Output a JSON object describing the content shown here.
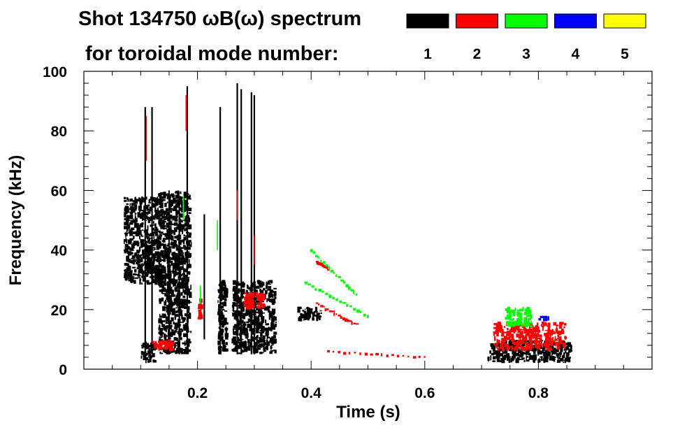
{
  "chart_data": {
    "type": "heatmap",
    "title_line1": "Shot 134750 ωB(ω) spectrum",
    "title_line2": "for toroidal mode number:",
    "xlabel": "Time (s)",
    "ylabel": "Frequency (kHz)",
    "xlim": [
      0.0,
      1.0
    ],
    "ylim": [
      0,
      100
    ],
    "x_ticks": [
      0.2,
      0.4,
      0.6,
      0.8
    ],
    "x_tick_labels": [
      "0.2",
      "0.4",
      "0.6",
      "0.8"
    ],
    "y_ticks": [
      0,
      20,
      40,
      60,
      80,
      100
    ],
    "y_tick_labels": [
      "0",
      "20",
      "40",
      "60",
      "80",
      "100"
    ],
    "legend": {
      "placement": "top-right",
      "entries": [
        {
          "label": "1",
          "color": "#000000"
        },
        {
          "label": "2",
          "color": "#ff0000"
        },
        {
          "label": "3",
          "color": "#00ff00"
        },
        {
          "label": "4",
          "color": "#0000ff"
        },
        {
          "label": "5",
          "color": "#ffff00"
        }
      ]
    },
    "series": [
      {
        "name": "n=1",
        "color": "#000000",
        "regions": [
          {
            "t": [
              0.07,
              0.14
            ],
            "f": [
              28,
              58
            ]
          },
          {
            "t": [
              0.1,
              0.13
            ],
            "f": [
              2,
              10
            ]
          },
          {
            "t": [
              0.13,
              0.19
            ],
            "f": [
              5,
              60
            ]
          },
          {
            "t": [
              0.235,
              0.255
            ],
            "f": [
              5,
              30
            ]
          },
          {
            "t": [
              0.26,
              0.34
            ],
            "f": [
              5,
              30
            ]
          },
          {
            "t": [
              0.375,
              0.42
            ],
            "f": [
              16,
              21
            ]
          },
          {
            "t": [
              0.71,
              0.86
            ],
            "f": [
              2,
              10
            ]
          }
        ],
        "streaks": [
          {
            "t": 0.108,
            "f": [
              5,
              88
            ]
          },
          {
            "t": 0.12,
            "f": [
              5,
              88
            ]
          },
          {
            "t": 0.15,
            "f": [
              5,
              60
            ]
          },
          {
            "t": 0.168,
            "f": [
              5,
              58
            ]
          },
          {
            "t": 0.182,
            "f": [
              5,
              95
            ]
          },
          {
            "t": 0.212,
            "f": [
              10,
              52
            ]
          },
          {
            "t": 0.24,
            "f": [
              5,
              88
            ]
          },
          {
            "t": 0.27,
            "f": [
              5,
              96
            ]
          },
          {
            "t": 0.277,
            "f": [
              5,
              94
            ]
          },
          {
            "t": 0.295,
            "f": [
              5,
              93
            ]
          },
          {
            "t": 0.3,
            "f": [
              5,
              92
            ]
          }
        ]
      },
      {
        "name": "n=2",
        "color": "#ff0000",
        "regions": [
          {
            "t": [
              0.12,
              0.16
            ],
            "f": [
              6,
              10
            ]
          },
          {
            "t": [
              0.2,
              0.21
            ],
            "f": [
              16,
              24
            ]
          },
          {
            "t": [
              0.28,
              0.32
            ],
            "f": [
              20,
              26
            ]
          },
          {
            "t": [
              0.72,
              0.85
            ],
            "f": [
              6,
              16
            ]
          }
        ],
        "streaks": [
          {
            "t": 0.11,
            "f": [
              70,
              85
            ]
          },
          {
            "t": 0.18,
            "f": [
              80,
              92
            ]
          },
          {
            "t": 0.27,
            "f": [
              50,
              60
            ]
          },
          {
            "t": 0.3,
            "f": [
              35,
              45
            ]
          }
        ],
        "trends": [
          {
            "t": [
              0.41,
              0.48
            ],
            "f": [
              22,
              15
            ]
          },
          {
            "t": [
              0.43,
              0.6
            ],
            "f": [
              6,
              4
            ]
          },
          {
            "t": [
              0.41,
              0.43
            ],
            "f": [
              36,
              34
            ]
          }
        ]
      },
      {
        "name": "n=3",
        "color": "#00ff00",
        "regions": [
          {
            "t": [
              0.74,
              0.79
            ],
            "f": [
              14,
              21
            ]
          }
        ],
        "streaks": [
          {
            "t": 0.205,
            "f": [
              22,
              28
            ]
          },
          {
            "t": 0.175,
            "f": [
              50,
              58
            ]
          },
          {
            "t": 0.235,
            "f": [
              40,
              50
            ]
          }
        ],
        "trends": [
          {
            "t": [
              0.4,
              0.48
            ],
            "f": [
              40,
              25
            ]
          },
          {
            "t": [
              0.39,
              0.5
            ],
            "f": [
              29,
              18
            ]
          }
        ]
      },
      {
        "name": "n=4",
        "color": "#0000ff",
        "regions": [
          {
            "t": [
              0.8,
              0.82
            ],
            "f": [
              16,
              18
            ]
          }
        ]
      }
    ]
  }
}
